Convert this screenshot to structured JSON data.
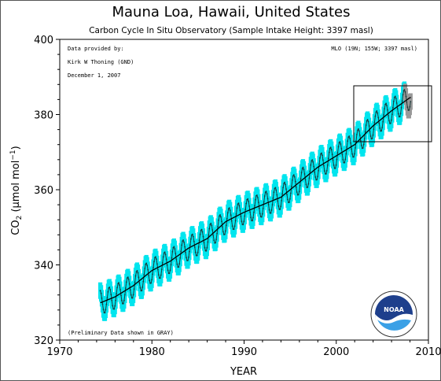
{
  "chart_data": {
    "type": "line",
    "title": "Mauna Loa, Hawaii, United States",
    "subtitle": "Carbon Cycle In Situ Observatory (Sample Intake Height: 3397 masl)",
    "xlabel": "YEAR",
    "ylabel": {
      "prefix": "CO",
      "sub": "2",
      "mid": " (µmol mol",
      "sup": "−1",
      "end": ")"
    },
    "xlim": [
      1970,
      2010
    ],
    "ylim": [
      320,
      400
    ],
    "xticks": [
      "1970",
      "1980",
      "1990",
      "2000",
      "2010"
    ],
    "yticks": [
      "320",
      "340",
      "360",
      "380",
      "400"
    ],
    "annotations": {
      "provider_label": "Data provided by:",
      "provider_name": "Kirk W Thoning (GND)",
      "date": "December  1, 2007",
      "station": "MLO (19N; 155W; 3397 masl)",
      "preliminary": "(Preliminary Data shown in GRAY)"
    },
    "series": [
      {
        "role": "trend",
        "x": [
          1974.5,
          1976,
          1978,
          1980,
          1982,
          1984,
          1986,
          1988,
          1990,
          1992,
          1994,
          1996,
          1998,
          2000,
          2002,
          2004,
          2006,
          2008
        ],
        "values": [
          330.0,
          331.5,
          334.5,
          338.5,
          341.0,
          344.5,
          347.0,
          351.5,
          354.0,
          356.0,
          358.0,
          362.0,
          366.0,
          369.0,
          372.0,
          377.0,
          381.0,
          384.5
        ]
      }
    ],
    "seasonal_amplitude": 3.2,
    "data_span": [
      1974.4,
      2008.1
    ],
    "preliminary_start": 2007.4,
    "colors": {
      "data": "#00e5ee",
      "monthly": "#1c3b3b",
      "preliminary": "#999999",
      "trend": "#000000",
      "inset_box": "#000000"
    },
    "logo": {
      "name": "noaa-logo",
      "text": "NOAA"
    }
  }
}
